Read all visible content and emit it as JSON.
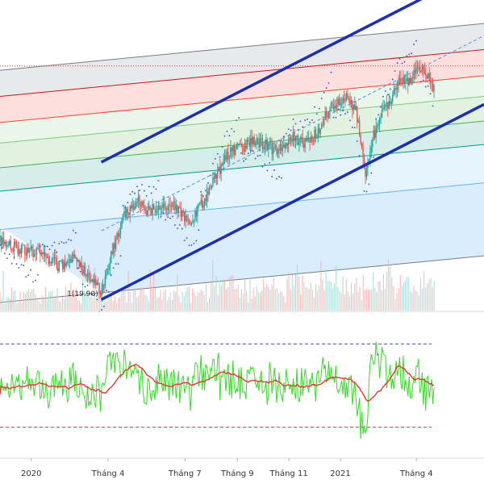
{
  "chart_data": [
    {
      "type": "candlestick",
      "name_hidden": true,
      "time_axis": {
        "ticks": [
          {
            "label": "2020",
            "date": "2020-01-01"
          },
          {
            "label": "Tháng 4",
            "date": "2020-04-01"
          },
          {
            "label": "Tháng 7",
            "date": "2020-07-01"
          },
          {
            "label": "Tháng 9",
            "date": "2020-09-01"
          },
          {
            "label": "Tháng 11",
            "date": "2020-11-01"
          },
          {
            "label": "2021",
            "date": "2021-01-01"
          },
          {
            "label": "Tháng 4",
            "date": "2021-04-01"
          }
        ],
        "range": [
          "2019-11-25",
          "2021-06-20"
        ]
      },
      "price_range": [
        18.6,
        41.2
      ],
      "anchor_point": {
        "date": "2020-03-24",
        "price": 19.9,
        "label": "1(19.90)"
      },
      "close_path": [
        [
          "2019-11-25",
          23.6
        ],
        [
          "2019-12-10",
          23.2
        ],
        [
          "2020-01-01",
          23.0
        ],
        [
          "2020-01-20",
          22.4
        ],
        [
          "2020-02-05",
          21.8
        ],
        [
          "2020-02-20",
          22.6
        ],
        [
          "2020-03-05",
          21.4
        ],
        [
          "2020-03-24",
          19.9
        ],
        [
          "2020-04-05",
          22.8
        ],
        [
          "2020-04-20",
          25.5
        ],
        [
          "2020-05-05",
          26.6
        ],
        [
          "2020-05-20",
          25.8
        ],
        [
          "2020-06-05",
          26.4
        ],
        [
          "2020-06-20",
          26.1
        ],
        [
          "2020-07-05",
          25.0
        ],
        [
          "2020-07-20",
          26.3
        ],
        [
          "2020-08-05",
          28.2
        ],
        [
          "2020-08-20",
          30.0
        ],
        [
          "2020-09-05",
          30.4
        ],
        [
          "2020-09-20",
          31.0
        ],
        [
          "2020-10-05",
          30.6
        ],
        [
          "2020-10-20",
          30.2
        ],
        [
          "2020-11-05",
          31.2
        ],
        [
          "2020-11-20",
          30.8
        ],
        [
          "2020-12-05",
          31.5
        ],
        [
          "2020-12-20",
          33.4
        ],
        [
          "2021-01-05",
          34.2
        ],
        [
          "2021-01-20",
          33.0
        ],
        [
          "2021-01-30",
          28.6
        ],
        [
          "2021-02-10",
          31.5
        ],
        [
          "2021-02-25",
          33.6
        ],
        [
          "2021-03-10",
          35.0
        ],
        [
          "2021-03-25",
          35.5
        ],
        [
          "2021-04-05",
          36.4
        ],
        [
          "2021-04-15",
          35.6
        ],
        [
          "2021-04-22",
          34.8
        ]
      ],
      "regression_channel": {
        "start": [
          "2020-03-24",
          24.4
        ],
        "end": [
          "2021-06-20",
          38.6
        ],
        "upper_offset": 5.0,
        "lower_offset": -5.0
      },
      "fib_levels": [
        {
          "price": 36.8,
          "color": "#787b86"
        },
        {
          "price": 34.9,
          "color": "#b71c1c"
        },
        {
          "price": 33.0,
          "color": "#f44336"
        },
        {
          "price": 31.5,
          "color": "#81c784"
        },
        {
          "price": 29.7,
          "color": "#4caf50"
        },
        {
          "price": 28.0,
          "color": "#089981"
        },
        {
          "price": 25.2,
          "color": "#64b5f6"
        },
        {
          "price": 19.9,
          "color": "#787b86"
        }
      ],
      "fib_zones": [
        {
          "color": "#787b86"
        },
        {
          "color": "#f44336"
        },
        {
          "color": "#81c784"
        },
        {
          "color": "#4caf50"
        },
        {
          "color": "#089981"
        },
        {
          "color": "#64b5f6"
        },
        {
          "color": "#2196f3"
        }
      ],
      "dotted_level": {
        "price": 36.4,
        "color": "#e53935"
      },
      "colors": {
        "up": "#26a69a",
        "down": "#ef5350",
        "channel": "#1b2fb0",
        "parabolic": "#2b4acb",
        "median": "#4a90e2",
        "volume_up": "#9dd6ce",
        "volume_down": "#f4a9a7"
      }
    },
    {
      "type": "line",
      "indicator": "oscillator",
      "value_range": [
        0,
        100
      ],
      "upper_band": 80,
      "lower_band": 20,
      "colors": {
        "value": "#33dd22",
        "signal": "#e53935",
        "upper": "#3f51d8",
        "lower": "#e53935"
      }
    }
  ]
}
